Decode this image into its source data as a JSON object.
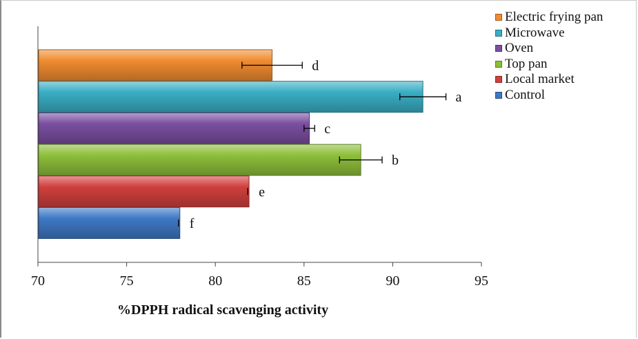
{
  "chart_data": {
    "type": "bar",
    "orientation": "horizontal",
    "categories": [
      "Electric frying pan",
      "Microwave",
      "Oven",
      "Top pan",
      "Local market",
      "Control"
    ],
    "values": [
      83.2,
      91.7,
      85.3,
      88.2,
      81.9,
      78.0
    ],
    "errors": [
      1.7,
      1.3,
      0.3,
      1.2,
      0.0,
      0.0
    ],
    "significance_letters": [
      "d",
      "a",
      "c",
      "b",
      "e",
      "f"
    ],
    "colors": [
      "#f08c30",
      "#3aaec4",
      "#7a4fa0",
      "#8dbf3a",
      "#d0403d",
      "#3f78c4"
    ],
    "xlim": [
      70,
      95
    ],
    "xticks": [
      70,
      75,
      80,
      85,
      90,
      95
    ],
    "xlabel": "%DPPH radical scavenging activity",
    "ylabel": "",
    "title": "",
    "legend_position": "top-right",
    "legend": [
      {
        "label": "Electric frying pan",
        "color": "#f08c30"
      },
      {
        "label": "Microwave",
        "color": "#3aaec4"
      },
      {
        "label": "Oven",
        "color": "#7a4fa0"
      },
      {
        "label": "Top pan",
        "color": "#8dbf3a"
      },
      {
        "label": "Local market",
        "color": "#d0403d"
      },
      {
        "label": "Control",
        "color": "#3f78c4"
      }
    ]
  }
}
